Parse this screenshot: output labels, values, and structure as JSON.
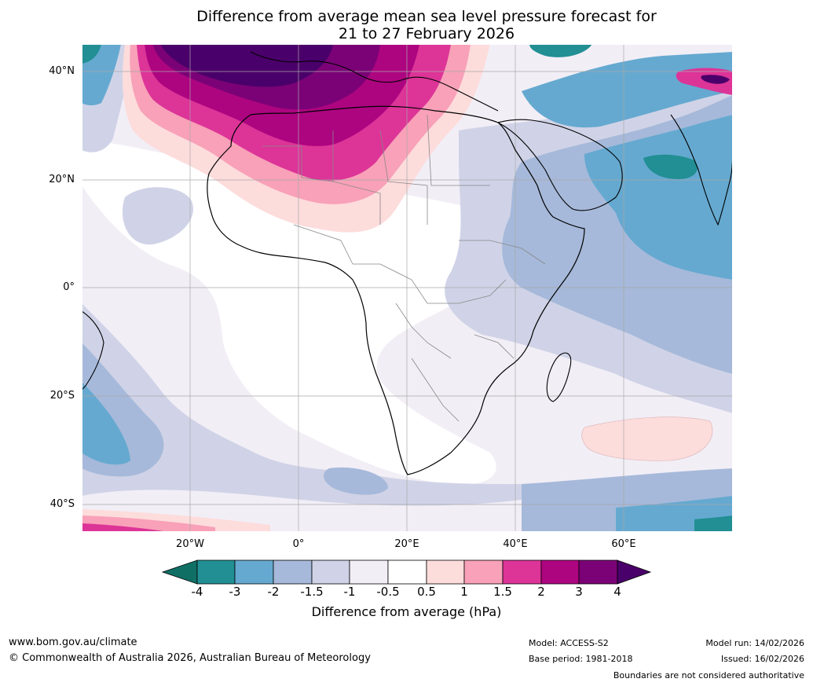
{
  "title": {
    "line1": "Difference from average mean sea level pressure forecast for",
    "line2": "21 to 27 February 2026"
  },
  "map": {
    "lat_labels": [
      "40°N",
      "20°N",
      "0°",
      "20°S",
      "40°S"
    ],
    "lon_labels": [
      "20°W",
      "0°",
      "20°E",
      "40°E",
      "60°E"
    ],
    "lat_range": [
      -45,
      45
    ],
    "lon_range": [
      -40,
      80
    ]
  },
  "colorbar": {
    "title": "Difference from average (hPa)",
    "tick_labels": [
      "-4",
      "-3",
      "-2",
      "-1.5",
      "-1",
      "-0.5",
      "0.5",
      "1",
      "1.5",
      "2",
      "3",
      "4"
    ],
    "colors": {
      "lt_-4": "#106f65",
      "-4_-3": "#218f93",
      "-3_-2": "#65a9d0",
      "-2_-1.5": "#a6b9da",
      "-1.5_-1": "#d0d3e7",
      "-1_-0.5": "#f2eef6",
      "-0.5_0.5": "#ffffff",
      "0.5_1": "#fddcdc",
      "1_1.5": "#f8a1b8",
      "1.5_2": "#dd3498",
      "2_3": "#ad0580",
      "3_4": "#7b0276",
      "gt_4": "#4a006a"
    }
  },
  "footer": {
    "website": "www.bom.gov.au/climate",
    "copyright": "© Commonwealth of Australia 2026, Australian Bureau of Meteorology",
    "model": "Model: ACCESS-S2",
    "base_period": "Base period: 1981-2018",
    "model_run": "Model run: 14/02/2026",
    "issued": "Issued: 16/02/2026",
    "boundaries_note": "Boundaries are not considered authoritative"
  }
}
